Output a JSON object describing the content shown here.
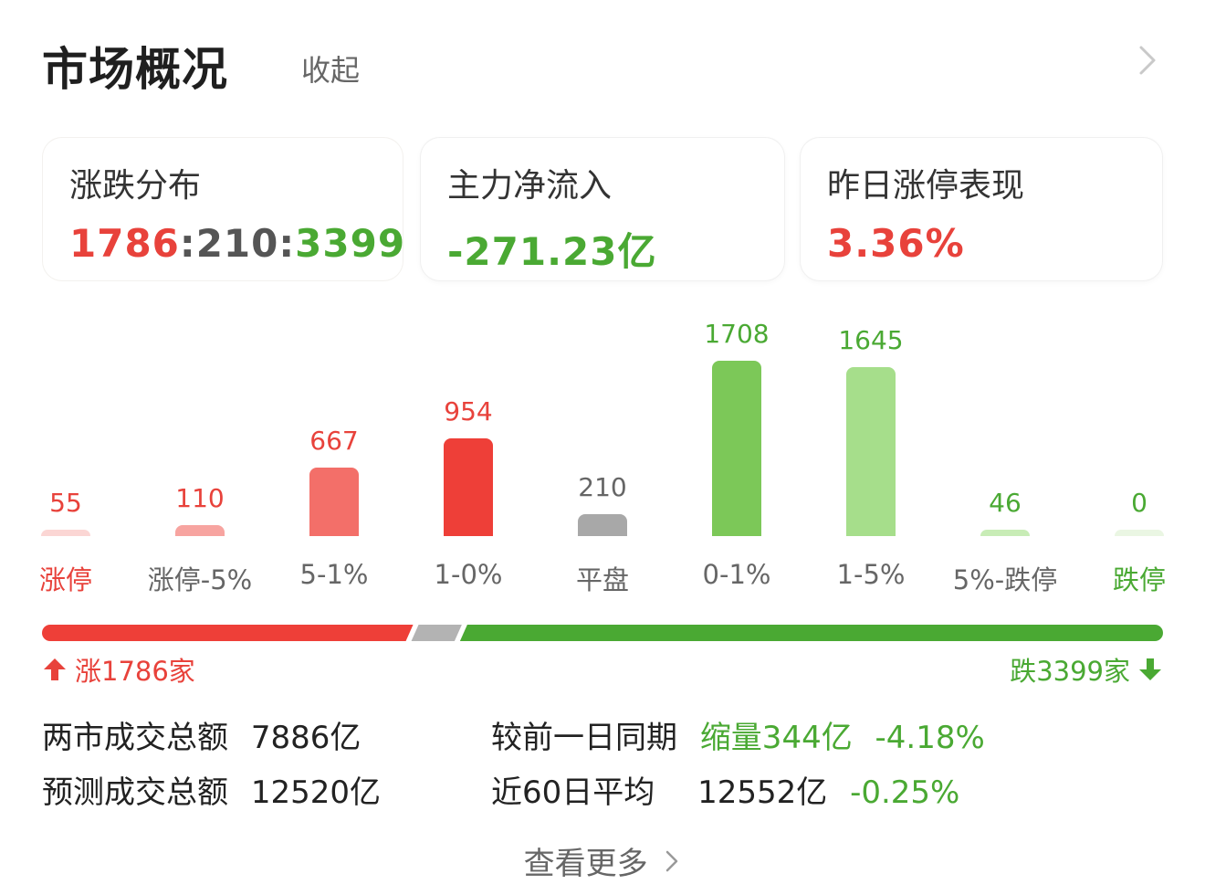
{
  "header": {
    "title": "市场概况",
    "collapse_label": "收起"
  },
  "cards": [
    {
      "title": "涨跌分布",
      "up": "1786",
      "sep1": ":",
      "flat": "210",
      "sep2": ":",
      "down": "3399"
    },
    {
      "title": "主力净流入",
      "value": "-271.23亿"
    },
    {
      "title": "昨日涨停表现",
      "value": "3.36%"
    }
  ],
  "chart_data": {
    "type": "bar",
    "categories": [
      "涨停",
      "涨停-5%",
      "5-1%",
      "1-0%",
      "平盘",
      "0-1%",
      "1-5%",
      "5%-跌停",
      "跌停"
    ],
    "values": [
      55,
      110,
      667,
      954,
      210,
      1708,
      1645,
      46,
      0
    ],
    "colors": [
      "#fbd6d4",
      "#f7a4a0",
      "#f36f69",
      "#ee3f38",
      "#a8a8a8",
      "#7cc858",
      "#a6de8b",
      "#c8ecb6",
      "#eaf6e3"
    ],
    "label_colors": [
      "#e8423b",
      "#e8423b",
      "#e8423b",
      "#e8423b",
      "#666666",
      "#4aa933",
      "#4aa933",
      "#4aa933",
      "#4aa933"
    ],
    "category_colors": [
      "#e8423b",
      "#666666",
      "#666666",
      "#666666",
      "#666666",
      "#666666",
      "#666666",
      "#666666",
      "#4aa933"
    ]
  },
  "breadth": {
    "up_count": 1786,
    "flat_count": 210,
    "down_count": 3399,
    "up_label": "涨1786家",
    "down_label": "跌3399家",
    "up_color": "#ee3f38",
    "flat_color": "#b3b3b3",
    "down_color": "#4aa933"
  },
  "stats": {
    "turnover_label": "两市成交总额",
    "turnover_value": "7886亿",
    "compare_label": "较前一日同期",
    "compare_value": "缩量344亿",
    "compare_pct": "-4.18%",
    "forecast_label": "预测成交总额",
    "forecast_value": "12520亿",
    "avg60_label": "近60日平均",
    "avg60_value": "12552亿",
    "avg60_pct": "-0.25%"
  },
  "more_label": "查看更多"
}
